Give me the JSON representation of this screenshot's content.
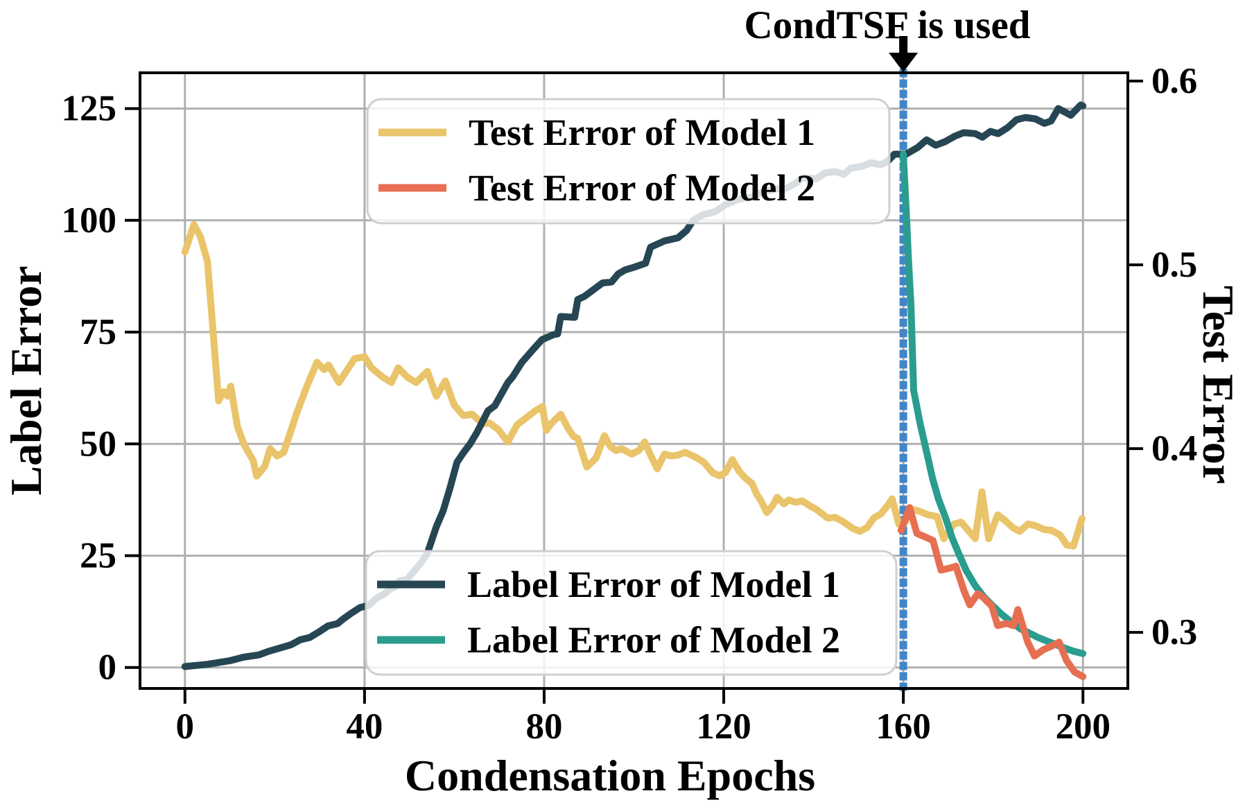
{
  "annotation": {
    "text": "CondTSF is used",
    "arrow_x_epoch": 160
  },
  "chart_data": {
    "type": "line",
    "xlabel": "Condensation Epochs",
    "ylabel_left": "Label Error",
    "ylabel_right": "Test Error",
    "xlim": [
      -10,
      210
    ],
    "ylim_left": [
      -4.7,
      133
    ],
    "ylim_right": [
      0.2695,
      0.6045
    ],
    "x_ticks": [
      0,
      40,
      80,
      120,
      160,
      200
    ],
    "y_ticks_left": [
      0,
      25,
      50,
      75,
      100,
      125
    ],
    "y_ticks_right": [
      0.3,
      0.4,
      0.5,
      0.6
    ],
    "grid": true,
    "grid_color": "#b0b0b0",
    "vline": {
      "x": 160,
      "color": "#4285c8",
      "style": "dotted"
    },
    "series": [
      {
        "name": "Test Error of Model 1",
        "axis": "right",
        "color": "#E9C46A",
        "points": [
          [
            0,
            0.507
          ],
          [
            2,
            0.522
          ],
          [
            3.5,
            0.515
          ],
          [
            5,
            0.502
          ],
          [
            7.5,
            0.426
          ],
          [
            8.6,
            0.431
          ],
          [
            9.5,
            0.4285
          ],
          [
            10.2,
            0.434
          ],
          [
            11.7,
            0.412
          ],
          [
            13.2,
            0.402
          ],
          [
            15.2,
            0.3935
          ],
          [
            16,
            0.385
          ],
          [
            17.8,
            0.3905
          ],
          [
            19,
            0.4
          ],
          [
            20.5,
            0.396
          ],
          [
            22,
            0.398
          ],
          [
            25,
            0.42
          ],
          [
            27,
            0.433
          ],
          [
            29.4,
            0.447
          ],
          [
            31,
            0.443
          ],
          [
            32,
            0.4455
          ],
          [
            34.3,
            0.436
          ],
          [
            37.8,
            0.449
          ],
          [
            40,
            0.45
          ],
          [
            41.5,
            0.444
          ],
          [
            44,
            0.439
          ],
          [
            46,
            0.436
          ],
          [
            47.5,
            0.444
          ],
          [
            49.5,
            0.439
          ],
          [
            51.5,
            0.436
          ],
          [
            54,
            0.442
          ],
          [
            56,
            0.4285
          ],
          [
            58,
            0.4368
          ],
          [
            60,
            0.4236
          ],
          [
            62,
            0.418
          ],
          [
            64,
            0.4187
          ],
          [
            66.3,
            0.4135
          ],
          [
            67.8,
            0.414
          ],
          [
            69.8,
            0.4104
          ],
          [
            71.9,
            0.4036
          ],
          [
            74,
            0.413
          ],
          [
            76,
            0.4167
          ],
          [
            78,
            0.4205
          ],
          [
            79.6,
            0.4229
          ],
          [
            80.5,
            0.41
          ],
          [
            81.5,
            0.4135
          ],
          [
            83.7,
            0.4187
          ],
          [
            85.2,
            0.4116
          ],
          [
            86.5,
            0.4067
          ],
          [
            87.5,
            0.4055
          ],
          [
            89.5,
            0.39
          ],
          [
            91.6,
            0.395
          ],
          [
            93.4,
            0.407
          ],
          [
            94.8,
            0.401
          ],
          [
            96,
            0.399
          ],
          [
            97.2,
            0.4
          ],
          [
            99.5,
            0.397
          ],
          [
            101.1,
            0.399
          ],
          [
            102.4,
            0.4036
          ],
          [
            103.7,
            0.3965
          ],
          [
            105.2,
            0.389
          ],
          [
            106.8,
            0.397
          ],
          [
            108.3,
            0.396
          ],
          [
            109.8,
            0.3965
          ],
          [
            111.4,
            0.398
          ],
          [
            114,
            0.395
          ],
          [
            115.5,
            0.3927
          ],
          [
            117.6,
            0.3867
          ],
          [
            119.1,
            0.3852
          ],
          [
            120.4,
            0.387
          ],
          [
            121.9,
            0.394
          ],
          [
            123.4,
            0.3878
          ],
          [
            124.8,
            0.384
          ],
          [
            126.3,
            0.381
          ],
          [
            127.3,
            0.3754
          ],
          [
            128.3,
            0.3716
          ],
          [
            129.6,
            0.3652
          ],
          [
            130.9,
            0.369
          ],
          [
            131.9,
            0.3735
          ],
          [
            133.4,
            0.37
          ],
          [
            134.5,
            0.372
          ],
          [
            136,
            0.3708
          ],
          [
            137.5,
            0.3716
          ],
          [
            139.1,
            0.369
          ],
          [
            140.6,
            0.367
          ],
          [
            142.2,
            0.364
          ],
          [
            143.2,
            0.3622
          ],
          [
            144.8,
            0.3626
          ],
          [
            146.3,
            0.3607
          ],
          [
            148.8,
            0.3565
          ],
          [
            150.3,
            0.355
          ],
          [
            151.9,
            0.357
          ],
          [
            153.4,
            0.3622
          ],
          [
            155,
            0.3645
          ],
          [
            156.5,
            0.369
          ],
          [
            157.5,
            0.3727
          ],
          [
            159,
            0.3588
          ],
          [
            160.5,
            0.3605
          ],
          [
            162,
            0.367
          ],
          [
            163.5,
            0.366
          ],
          [
            165.5,
            0.364
          ],
          [
            167.5,
            0.363
          ],
          [
            169,
            0.351
          ],
          [
            171.3,
            0.359
          ],
          [
            172.9,
            0.36
          ],
          [
            176,
            0.351
          ],
          [
            177.5,
            0.3765
          ],
          [
            179,
            0.351
          ],
          [
            181,
            0.364
          ],
          [
            182.6,
            0.361
          ],
          [
            184.4,
            0.357
          ],
          [
            185.9,
            0.355
          ],
          [
            187.8,
            0.359
          ],
          [
            189.5,
            0.358
          ],
          [
            191.3,
            0.356
          ],
          [
            193,
            0.3555
          ],
          [
            194.9,
            0.353
          ],
          [
            196.4,
            0.3475
          ],
          [
            197.9,
            0.347
          ],
          [
            199.8,
            0.362
          ]
        ]
      },
      {
        "name": "Label Error of Model 1",
        "axis": "left",
        "color": "#264653",
        "points": [
          [
            0,
            0.2
          ],
          [
            5,
            0.7
          ],
          [
            10,
            1.5
          ],
          [
            13,
            2.3
          ],
          [
            16.5,
            2.8
          ],
          [
            18.6,
            3.6
          ],
          [
            21,
            4.3
          ],
          [
            23.7,
            5.1
          ],
          [
            25.7,
            6.2
          ],
          [
            27.8,
            6.7
          ],
          [
            29.8,
            7.9
          ],
          [
            31.9,
            9.3
          ],
          [
            34,
            9.8
          ],
          [
            35.2,
            10.8
          ],
          [
            37,
            12.1
          ],
          [
            39,
            13.4
          ],
          [
            41,
            13.9
          ],
          [
            42.7,
            15.5
          ],
          [
            44.2,
            16.3
          ],
          [
            45.7,
            17.5
          ],
          [
            46.8,
            18
          ],
          [
            47.8,
            19.4
          ],
          [
            49.4,
            19.6
          ],
          [
            50.9,
            21.4
          ],
          [
            52.5,
            23.3
          ],
          [
            54,
            25.5
          ],
          [
            55,
            28.5
          ],
          [
            56,
            31.5
          ],
          [
            57.5,
            35
          ],
          [
            59,
            40
          ],
          [
            60.6,
            45.9
          ],
          [
            62,
            48
          ],
          [
            63.5,
            50
          ],
          [
            65,
            52.5
          ],
          [
            67.5,
            57.4
          ],
          [
            69,
            58.5
          ],
          [
            71.9,
            63.7
          ],
          [
            73,
            65
          ],
          [
            75,
            68.2
          ],
          [
            77,
            70.5
          ],
          [
            79.5,
            73.3
          ],
          [
            82,
            74.4
          ],
          [
            83,
            74.6
          ],
          [
            83.7,
            78.5
          ],
          [
            86.8,
            78.3
          ],
          [
            87.5,
            82.3
          ],
          [
            89,
            83
          ],
          [
            91,
            84.5
          ],
          [
            93,
            86
          ],
          [
            95,
            86.2
          ],
          [
            96.5,
            88
          ],
          [
            98,
            88.9
          ],
          [
            100,
            89.5
          ],
          [
            102.6,
            90.4
          ],
          [
            103.7,
            94
          ],
          [
            106.8,
            95.4
          ],
          [
            109.8,
            96.1
          ],
          [
            111.7,
            97.7
          ],
          [
            113.2,
            100
          ],
          [
            115.5,
            101.3
          ],
          [
            118,
            101.9
          ],
          [
            120.6,
            103.6
          ],
          [
            123.2,
            104.7
          ],
          [
            126.3,
            105.2
          ],
          [
            128.8,
            106.4
          ],
          [
            131.4,
            107
          ],
          [
            134,
            107.2
          ],
          [
            136.5,
            108.6
          ],
          [
            137.5,
            109.5
          ],
          [
            140.6,
            109.3
          ],
          [
            142.6,
            110.6
          ],
          [
            144.8,
            110.9
          ],
          [
            146.8,
            110.3
          ],
          [
            148.3,
            111.7
          ],
          [
            150.9,
            112.1
          ],
          [
            152.9,
            112.9
          ],
          [
            154.9,
            112.4
          ],
          [
            156.5,
            113.2
          ],
          [
            158,
            114.8
          ],
          [
            160.6,
            114.8
          ],
          [
            163.2,
            116.3
          ],
          [
            165.2,
            118
          ],
          [
            167.2,
            116.8
          ],
          [
            169.3,
            117.6
          ],
          [
            171.4,
            118.8
          ],
          [
            173.4,
            119.6
          ],
          [
            176,
            119.4
          ],
          [
            177.6,
            118.6
          ],
          [
            179.4,
            119.9
          ],
          [
            181.1,
            119.4
          ],
          [
            183.2,
            120.7
          ],
          [
            185.2,
            122.5
          ],
          [
            187.2,
            123
          ],
          [
            189.4,
            122.7
          ],
          [
            191.4,
            121.7
          ],
          [
            192.9,
            122.2
          ],
          [
            194.5,
            125
          ],
          [
            196,
            124.2
          ],
          [
            197.3,
            123.5
          ],
          [
            199.5,
            125.8
          ],
          [
            200,
            125.6
          ]
        ]
      },
      {
        "name": "Label Error of Model 2",
        "axis": "left",
        "color": "#2A9D8F",
        "points": [
          [
            160,
            114.8
          ],
          [
            160.6,
            103
          ],
          [
            161.1,
            92
          ],
          [
            161.7,
            81
          ],
          [
            162.3,
            62
          ],
          [
            163.7,
            54.7
          ],
          [
            165,
            49
          ],
          [
            166.5,
            42.3
          ],
          [
            167.8,
            37.7
          ],
          [
            169.4,
            33.5
          ],
          [
            170.9,
            28.9
          ],
          [
            172.4,
            25.3
          ],
          [
            174,
            21.7
          ],
          [
            176,
            18.3
          ],
          [
            178,
            15.7
          ],
          [
            180,
            13.7
          ],
          [
            182,
            11.8
          ],
          [
            184,
            10.2
          ],
          [
            186,
            8.7
          ],
          [
            188,
            7.7
          ],
          [
            190,
            6.7
          ],
          [
            192,
            5.9
          ],
          [
            194,
            5.1
          ],
          [
            196,
            4.3
          ],
          [
            198,
            3.6
          ],
          [
            200,
            3.1
          ]
        ]
      },
      {
        "name": "Test Error of Model 2",
        "axis": "right",
        "color": "#E76F51",
        "points": [
          [
            159.5,
            0.3555
          ],
          [
            161.4,
            0.3679
          ],
          [
            163,
            0.3539
          ],
          [
            164.8,
            0.352
          ],
          [
            166.6,
            0.35
          ],
          [
            168.4,
            0.3339
          ],
          [
            170.4,
            0.335
          ],
          [
            171.7,
            0.336
          ],
          [
            173.5,
            0.3226
          ],
          [
            174.8,
            0.315
          ],
          [
            176.6,
            0.3211
          ],
          [
            177.8,
            0.319
          ],
          [
            179.7,
            0.3143
          ],
          [
            181,
            0.3037
          ],
          [
            183,
            0.3049
          ],
          [
            184.5,
            0.3037
          ],
          [
            185.5,
            0.3124
          ],
          [
            187.7,
            0.2947
          ],
          [
            189.2,
            0.2872
          ],
          [
            191.2,
            0.2906
          ],
          [
            193,
            0.2925
          ],
          [
            194.7,
            0.2947
          ],
          [
            196.3,
            0.2849
          ],
          [
            198.1,
            0.2785
          ],
          [
            200,
            0.2759
          ]
        ]
      }
    ],
    "legends": [
      {
        "position": "upper-center",
        "entries": [
          {
            "label": "Test Error of Model 1",
            "color": "#E9C46A"
          },
          {
            "label": "Test Error of Model 2",
            "color": "#E76F51"
          }
        ]
      },
      {
        "position": "lower-center",
        "entries": [
          {
            "label": "Label Error of Model 1",
            "color": "#264653"
          },
          {
            "label": "Label Error of Model 2",
            "color": "#2A9D8F"
          }
        ]
      }
    ]
  }
}
